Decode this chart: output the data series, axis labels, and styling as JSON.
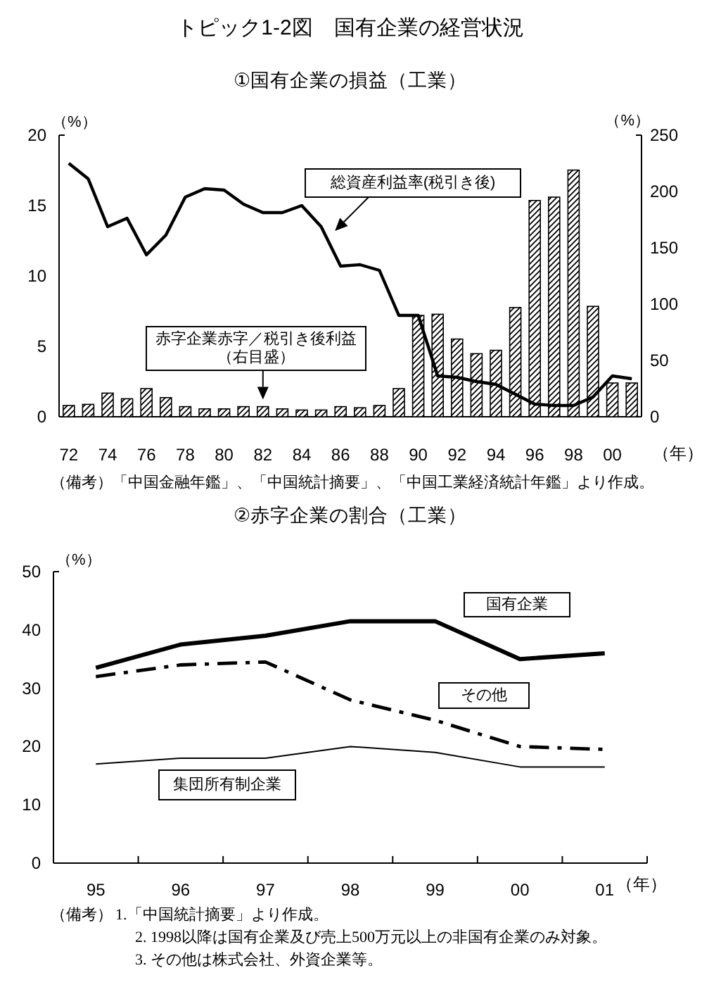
{
  "chart_data": [
    {
      "type": "bar",
      "title": "トピック1-2図　国有企業の経営状況",
      "subtitle": "①国有企業の損益（工業）",
      "xlabel": "（年）",
      "ylabel": "（%）",
      "y2label": "（%）",
      "categories": [
        "72",
        null,
        "74",
        null,
        "76",
        null,
        "78",
        null,
        "80",
        null,
        "82",
        null,
        "84",
        null,
        "86",
        null,
        "88",
        null,
        "90",
        null,
        "92",
        null,
        "94",
        null,
        "96",
        null,
        "98",
        null,
        "00",
        null
      ],
      "series": [
        {
          "name": "赤字企業赤字／税引き後利益（右目盛）",
          "axis": "y2",
          "color": "#000000",
          "values": [
            10,
            11,
            21,
            16,
            25,
            17,
            9,
            7,
            7,
            9,
            9,
            7,
            6,
            6,
            9,
            8,
            10,
            25,
            90,
            91,
            69,
            56,
            59,
            97,
            192,
            195,
            219,
            98,
            30,
            30
          ]
        },
        {
          "name": "総資産利益率(税引き後)",
          "type": "line",
          "color": "#000000",
          "line_style": "solid",
          "values": [
            18.0,
            16.9,
            13.5,
            14.1,
            11.5,
            12.9,
            15.6,
            16.2,
            16.1,
            15.1,
            14.5,
            14.5,
            15.0,
            13.5,
            10.7,
            10.8,
            10.4,
            7.2,
            7.2,
            2.9,
            2.8,
            2.5,
            2.3,
            1.6,
            0.9,
            0.8,
            0.8,
            1.4,
            2.9,
            2.7
          ]
        }
      ],
      "ylim": [
        0,
        20
      ],
      "yticks": [
        0,
        5,
        10,
        15,
        20
      ],
      "y2lim": [
        0,
        250
      ],
      "y2ticks": [
        0,
        50,
        100,
        150,
        200,
        250
      ],
      "annotations": [
        "（備考）「中国金融年鑑」、「中国統計摘要」、「中国工業経済統計年鑑」より作成。"
      ]
    },
    {
      "type": "line",
      "title": "②赤字企業の割合（工業）",
      "xlabel": "（年）",
      "ylabel": "（%）",
      "categories": [
        "95",
        "96",
        "97",
        "98",
        "99",
        "00",
        "01"
      ],
      "series": [
        {
          "name": "国有企業",
          "color": "#000000",
          "line_style": "solid",
          "values": [
            33.5,
            37.5,
            39,
            41.5,
            41.5,
            35,
            36
          ]
        },
        {
          "name": "その他",
          "color": "#000000",
          "line_style": "dashdot",
          "values": [
            32,
            34,
            34.5,
            28,
            24.5,
            20,
            19.5
          ]
        },
        {
          "name": "集団所有制企業",
          "color": "#000000",
          "line_style": "solid",
          "values": [
            17,
            18,
            18,
            20,
            19,
            16.5,
            16.5
          ]
        }
      ],
      "ylim": [
        0,
        50
      ],
      "yticks": [
        0,
        10,
        20,
        30,
        40,
        50
      ],
      "annotations": [
        "（備考）",
        "1.「中国統計摘要」より作成。",
        "2. 1998以降は国有企業及び売上500万元以上の非国有企業のみ対象。",
        "3. その他は株式会社、外資企業等。"
      ]
    }
  ]
}
